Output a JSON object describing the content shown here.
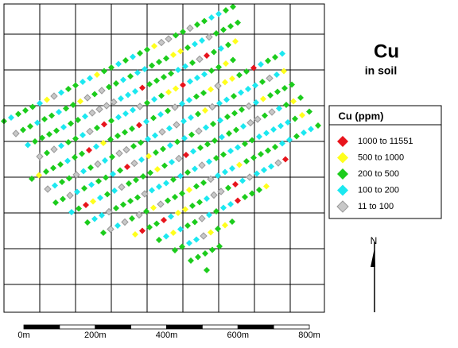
{
  "title": "Cu",
  "subtitle": "in soil",
  "legend": {
    "title": "Cu (ppm)",
    "items": [
      {
        "label": "1000 to 11551",
        "color": "#e8141c"
      },
      {
        "label": "500 to 1000",
        "color": "#ffff1c"
      },
      {
        "label": "200 to 500",
        "color": "#1ccc1c"
      },
      {
        "label": "100 to 200",
        "color": "#1ce8f0"
      },
      {
        "label": "11 to 100",
        "color": "#c8c8c8"
      }
    ]
  },
  "scale": {
    "labels": [
      "0m",
      "200m",
      "400m",
      "600m",
      "800m"
    ]
  },
  "north": "N"
}
